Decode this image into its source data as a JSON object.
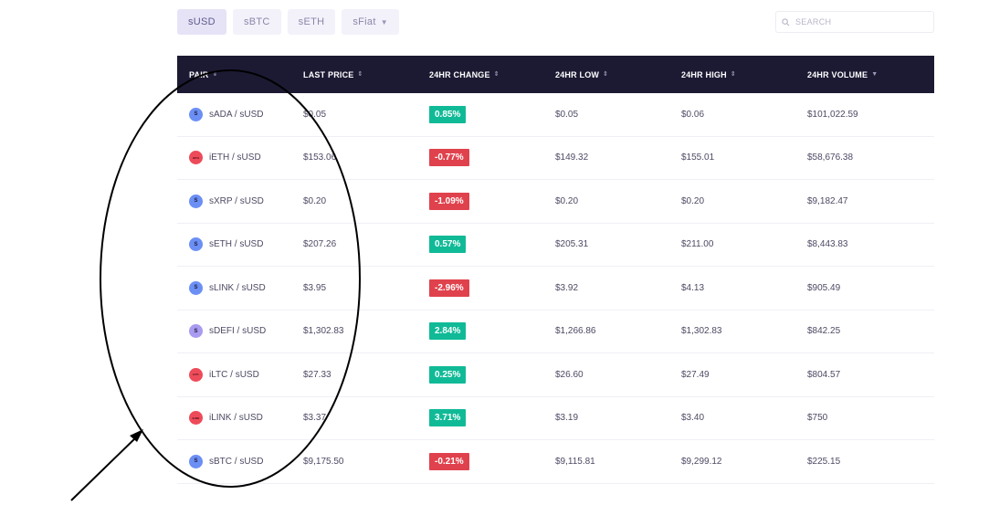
{
  "tabs": [
    {
      "label": "sUSD",
      "active": true
    },
    {
      "label": "sBTC",
      "active": false
    },
    {
      "label": "sETH",
      "active": false
    },
    {
      "label": "sFiat",
      "active": false,
      "dropdown": true
    }
  ],
  "search": {
    "placeholder": "SEARCH",
    "icon": "search-icon"
  },
  "table": {
    "columns": [
      {
        "label": "PAIR",
        "sort_icon": "sort-both-icon"
      },
      {
        "label": "LAST PRICE",
        "sort_icon": "sort-both-icon"
      },
      {
        "label": "24HR CHANGE",
        "sort_icon": "sort-both-icon"
      },
      {
        "label": "24HR LOW",
        "sort_icon": "sort-both-icon"
      },
      {
        "label": "24HR HIGH",
        "sort_icon": "sort-both-icon"
      },
      {
        "label": "24HR VOLUME",
        "sort_icon": "sort-down-icon"
      }
    ],
    "rows": [
      {
        "icon_text": "S",
        "icon_color": "#6b8ff5",
        "pair": "sADA / sUSD",
        "last_price": "$0.05",
        "change": "0.85%",
        "direction": "up",
        "low": "$0.05",
        "high": "$0.06",
        "volume": "$101,022.59"
      },
      {
        "icon_text": "iETH",
        "icon_color": "#ee4b5a",
        "pair": "iETH / sUSD",
        "last_price": "$153.06",
        "change": "-0.77%",
        "direction": "down",
        "low": "$149.32",
        "high": "$155.01",
        "volume": "$58,676.38"
      },
      {
        "icon_text": "S",
        "icon_color": "#6b8ff5",
        "pair": "sXRP / sUSD",
        "last_price": "$0.20",
        "change": "-1.09%",
        "direction": "down",
        "low": "$0.20",
        "high": "$0.20",
        "volume": "$9,182.47"
      },
      {
        "icon_text": "S",
        "icon_color": "#6b8ff5",
        "pair": "sETH / sUSD",
        "last_price": "$207.26",
        "change": "0.57%",
        "direction": "up",
        "low": "$205.31",
        "high": "$211.00",
        "volume": "$8,443.83"
      },
      {
        "icon_text": "S",
        "icon_color": "#6b8ff5",
        "pair": "sLINK / sUSD",
        "last_price": "$3.95",
        "change": "-2.96%",
        "direction": "down",
        "low": "$3.92",
        "high": "$4.13",
        "volume": "$905.49"
      },
      {
        "icon_text": "S",
        "icon_color": "#a89bf0",
        "pair": "sDEFI / sUSD",
        "last_price": "$1,302.83",
        "change": "2.84%",
        "direction": "up",
        "low": "$1,266.86",
        "high": "$1,302.83",
        "volume": "$842.25"
      },
      {
        "icon_text": "iLTC",
        "icon_color": "#ee4b5a",
        "pair": "iLTC / sUSD",
        "last_price": "$27.33",
        "change": "0.25%",
        "direction": "up",
        "low": "$26.60",
        "high": "$27.49",
        "volume": "$804.57"
      },
      {
        "icon_text": "iLINK",
        "icon_color": "#ee4b5a",
        "pair": "iLINK / sUSD",
        "last_price": "$3.37",
        "change": "3.71%",
        "direction": "up",
        "low": "$3.19",
        "high": "$3.40",
        "volume": "$750"
      },
      {
        "icon_text": "S",
        "icon_color": "#6b8ff5",
        "pair": "sBTC / sUSD",
        "last_price": "$9,175.50",
        "change": "-0.21%",
        "direction": "down",
        "low": "$9,115.81",
        "high": "$9,299.12",
        "volume": "$225.15"
      }
    ]
  },
  "annotation": {
    "shape": "ellipse-outline",
    "target": "pair column",
    "arrow": "arrow pointing to ellipse from lower-left",
    "color": "#000000"
  }
}
